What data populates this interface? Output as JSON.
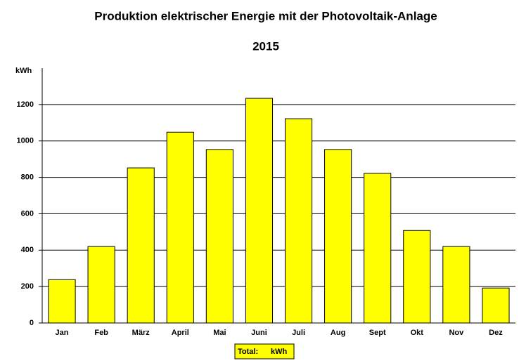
{
  "chart_data": {
    "type": "bar",
    "title": "Produktion elektrischer Energie mit der Photovoltaik-Anlage",
    "subtitle": "2015",
    "y_label": "kWh",
    "categories": [
      "Jan",
      "Feb",
      "März",
      "April",
      "Mai",
      "Juni",
      "Juli",
      "Aug",
      "Sept",
      "Okt",
      "Nov",
      "Dez"
    ],
    "values": [
      238,
      420,
      852,
      1048,
      953,
      1234,
      1122,
      953,
      822,
      508,
      420,
      192
    ],
    "color": "#ffff00",
    "ylim": [
      0,
      1400
    ],
    "yticks": [
      0,
      200,
      400,
      600,
      800,
      1000,
      1200
    ],
    "grid": true,
    "total_label": "Total:",
    "total_unit": "kWh"
  }
}
